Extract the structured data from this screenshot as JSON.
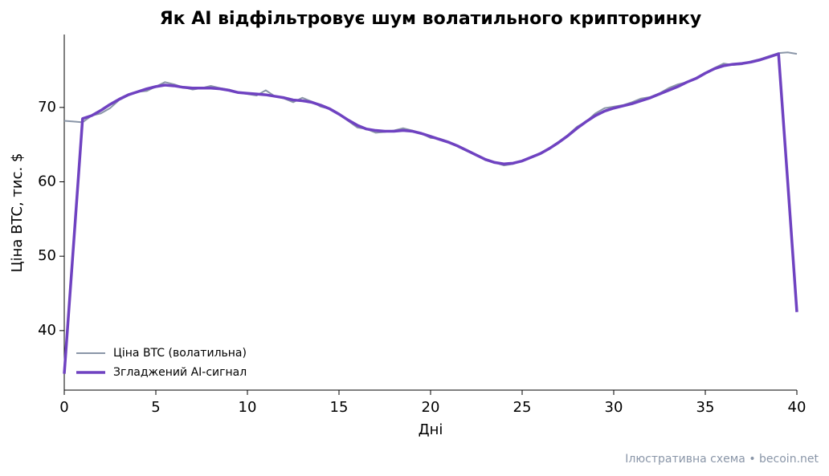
{
  "chart_data": {
    "type": "line",
    "title": "Як AI відфільтровує шум волатильного крипторинку",
    "x_label": "Дні",
    "y_label": "Ціна BTC, тис. $",
    "footnote": "Ілюстративна схема • becoin.net",
    "xlim": [
      0,
      40
    ],
    "xticks": [
      0,
      5,
      10,
      15,
      20,
      25,
      30,
      35,
      40
    ],
    "ylim": [
      32,
      79.8
    ],
    "yticks": [
      40,
      50,
      60,
      70
    ],
    "legend": "lower left",
    "x": [
      0,
      0.5,
      1,
      1.5,
      2,
      2.5,
      3,
      3.5,
      4,
      4.5,
      5,
      5.5,
      6,
      6.5,
      7,
      7.5,
      8,
      8.5,
      9,
      9.5,
      10,
      10.5,
      11,
      11.5,
      12,
      12.5,
      13,
      13.5,
      14,
      14.5,
      15,
      15.5,
      16,
      16.5,
      17,
      17.5,
      18,
      18.5,
      19,
      19.5,
      20,
      20.5,
      21,
      21.5,
      22,
      22.5,
      23,
      23.5,
      24,
      24.5,
      25,
      25.5,
      26,
      26.5,
      27,
      27.5,
      28,
      28.5,
      29,
      29.5,
      30,
      30.5,
      31,
      31.5,
      32,
      32.5,
      33,
      33.5,
      34,
      34.5,
      35,
      35.5,
      36,
      36.5,
      37,
      37.5,
      38,
      38.5,
      39,
      39.5,
      40
    ],
    "series": [
      {
        "name": "Ціна BTC (волатильна)",
        "color": "#8a96a8",
        "width": 2,
        "values": [
          68.2,
          68.1,
          68.0,
          68.9,
          69.2,
          69.9,
          71.0,
          71.6,
          72.1,
          72.2,
          72.8,
          73.4,
          73.1,
          72.7,
          72.4,
          72.6,
          72.9,
          72.6,
          72.4,
          72.0,
          71.8,
          71.6,
          72.3,
          71.5,
          71.2,
          70.7,
          71.3,
          70.8,
          70.1,
          69.8,
          69.1,
          68.2,
          67.3,
          67.1,
          66.6,
          66.7,
          66.9,
          67.2,
          66.9,
          66.5,
          65.9,
          65.8,
          65.4,
          64.7,
          64.1,
          63.6,
          62.9,
          62.6,
          62.2,
          62.4,
          62.8,
          63.3,
          63.9,
          64.5,
          65.4,
          66.3,
          67.4,
          68.1,
          69.2,
          69.9,
          70.1,
          70.3,
          70.7,
          71.2,
          71.4,
          71.9,
          72.6,
          73.1,
          73.4,
          73.9,
          74.6,
          75.3,
          75.9,
          75.7,
          75.8,
          76.2,
          76.5,
          76.9,
          77.3,
          77.4,
          77.2
        ]
      },
      {
        "name": "Згладжений AI-сигнал",
        "color": "#6f42c1",
        "width": 3.5,
        "values": [
          34.2,
          51.3,
          68.5,
          68.9,
          69.6,
          70.4,
          71.1,
          71.7,
          72.1,
          72.5,
          72.8,
          73.0,
          72.9,
          72.7,
          72.6,
          72.6,
          72.6,
          72.5,
          72.3,
          72.0,
          71.9,
          71.8,
          71.7,
          71.5,
          71.3,
          71.0,
          70.9,
          70.7,
          70.3,
          69.8,
          69.1,
          68.3,
          67.6,
          67.1,
          66.9,
          66.8,
          66.8,
          66.9,
          66.8,
          66.5,
          66.1,
          65.7,
          65.3,
          64.8,
          64.2,
          63.6,
          63.0,
          62.6,
          62.4,
          62.5,
          62.8,
          63.3,
          63.8,
          64.5,
          65.3,
          66.2,
          67.2,
          68.1,
          68.9,
          69.5,
          69.9,
          70.2,
          70.5,
          70.9,
          71.3,
          71.8,
          72.3,
          72.8,
          73.4,
          73.9,
          74.6,
          75.2,
          75.6,
          75.8,
          75.9,
          76.1,
          76.4,
          76.8,
          77.2,
          60.0,
          42.5
        ]
      }
    ]
  }
}
